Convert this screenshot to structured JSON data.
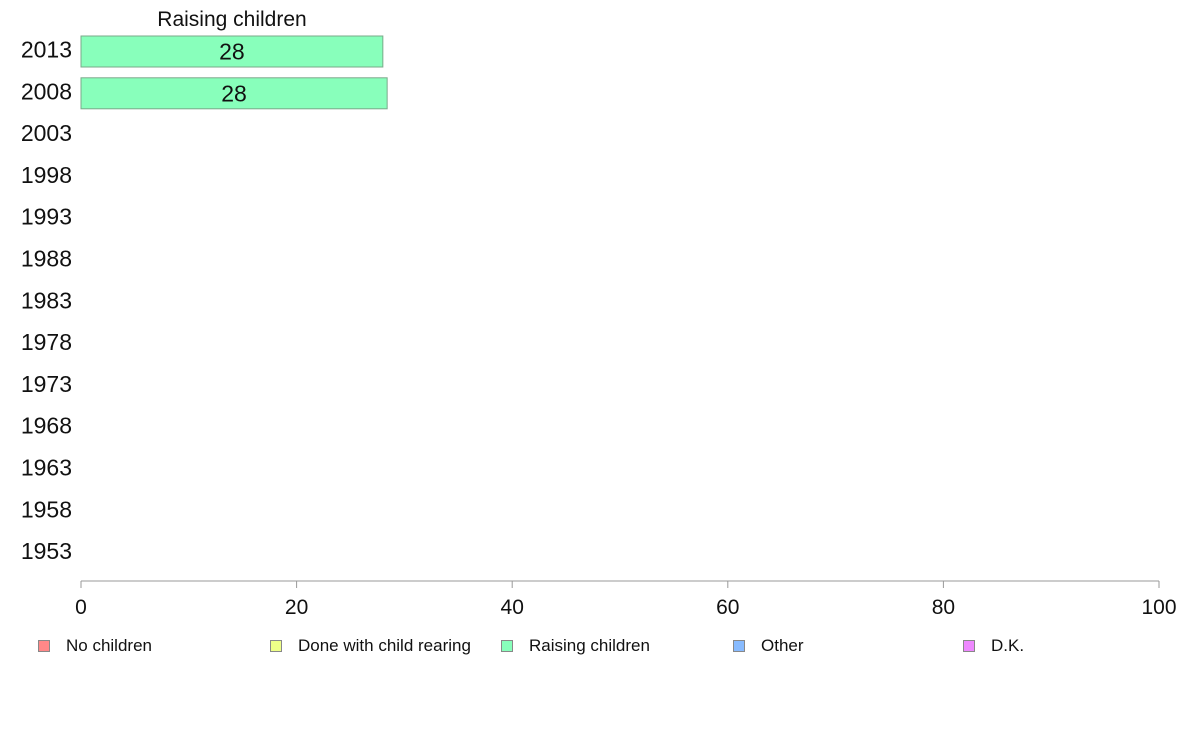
{
  "chart_data": {
    "type": "bar",
    "orientation": "horizontal",
    "title": "Raising children",
    "categories": [
      "2013",
      "2008",
      "2003",
      "1998",
      "1993",
      "1988",
      "1983",
      "1978",
      "1973",
      "1968",
      "1963",
      "1958",
      "1953"
    ],
    "series": [
      {
        "name": "Raising children",
        "color": "#88ffbb",
        "values": [
          28,
          28.4,
          null,
          null,
          null,
          null,
          null,
          null,
          null,
          null,
          null,
          null,
          null
        ],
        "labels": [
          "28",
          "28",
          "",
          "",
          "",
          "",
          "",
          "",
          "",
          "",
          "",
          "",
          ""
        ]
      }
    ],
    "xlim": [
      0,
      100
    ],
    "xticks": [
      0,
      20,
      40,
      60,
      80,
      100
    ],
    "legend_position": "bottom",
    "legend": [
      {
        "label": "No children",
        "color": "#ff8888"
      },
      {
        "label": "Done with child rearing",
        "color": "#eeff88"
      },
      {
        "label": "Raising children",
        "color": "#88ffbb"
      },
      {
        "label": "Other",
        "color": "#88bbff"
      },
      {
        "label": "D.K.",
        "color": "#ee88ff"
      }
    ]
  }
}
